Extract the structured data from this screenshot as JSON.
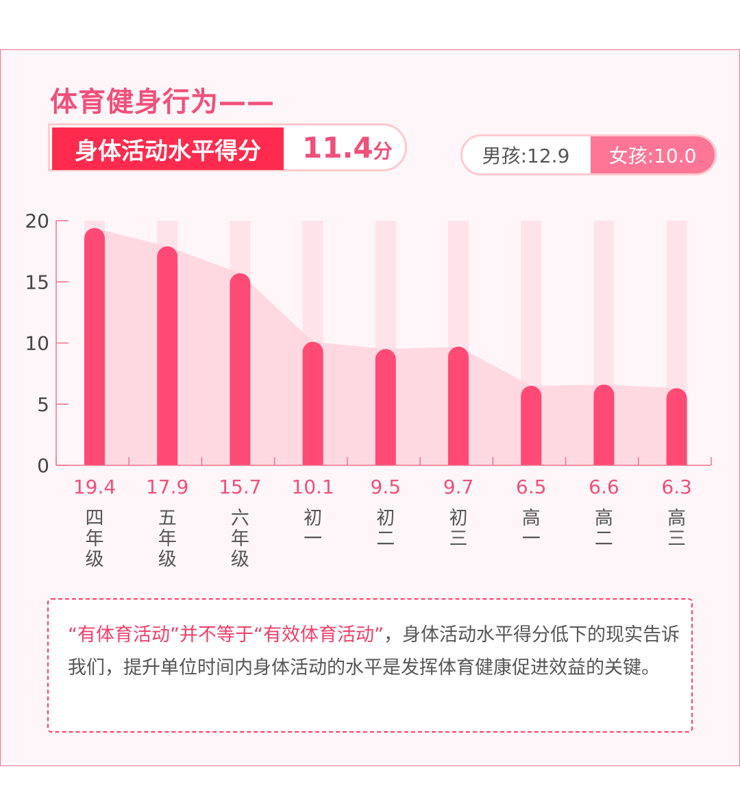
{
  "title": "体育健身行为——",
  "score": {
    "label": "身体活动水平得分",
    "value": "11.4",
    "unit": "分"
  },
  "gender": {
    "boy": "男孩:12.9",
    "girl": "女孩:10.0"
  },
  "colors": {
    "bar": "#ff4a75",
    "area": "#ffd3de",
    "stripe": "#ffe3ea",
    "accent": "#ff2b4e"
  },
  "chart_data": {
    "type": "bar",
    "categories": [
      "四年级",
      "五年级",
      "六年级",
      "初一",
      "初二",
      "初三",
      "高一",
      "高二",
      "高三"
    ],
    "values": [
      19.4,
      17.9,
      15.7,
      10.1,
      9.5,
      9.7,
      6.5,
      6.6,
      6.3
    ],
    "data_labels": [
      "19.4",
      "17.9",
      "15.7",
      "10.1",
      "9.5",
      "9.7",
      "6.5",
      "6.6",
      "6.3"
    ],
    "yticks": [
      "0",
      "5",
      "10",
      "15",
      "20"
    ],
    "ylim": [
      0,
      20
    ],
    "grid": false
  },
  "note": {
    "highlight": "“有体育活动”并不等于“有效体育活动”",
    "text": "，身体活动水平得分低下的现实告诉我们，提升单位时间内身体活动的水平是发挥体育健康促进效益的关键。"
  }
}
